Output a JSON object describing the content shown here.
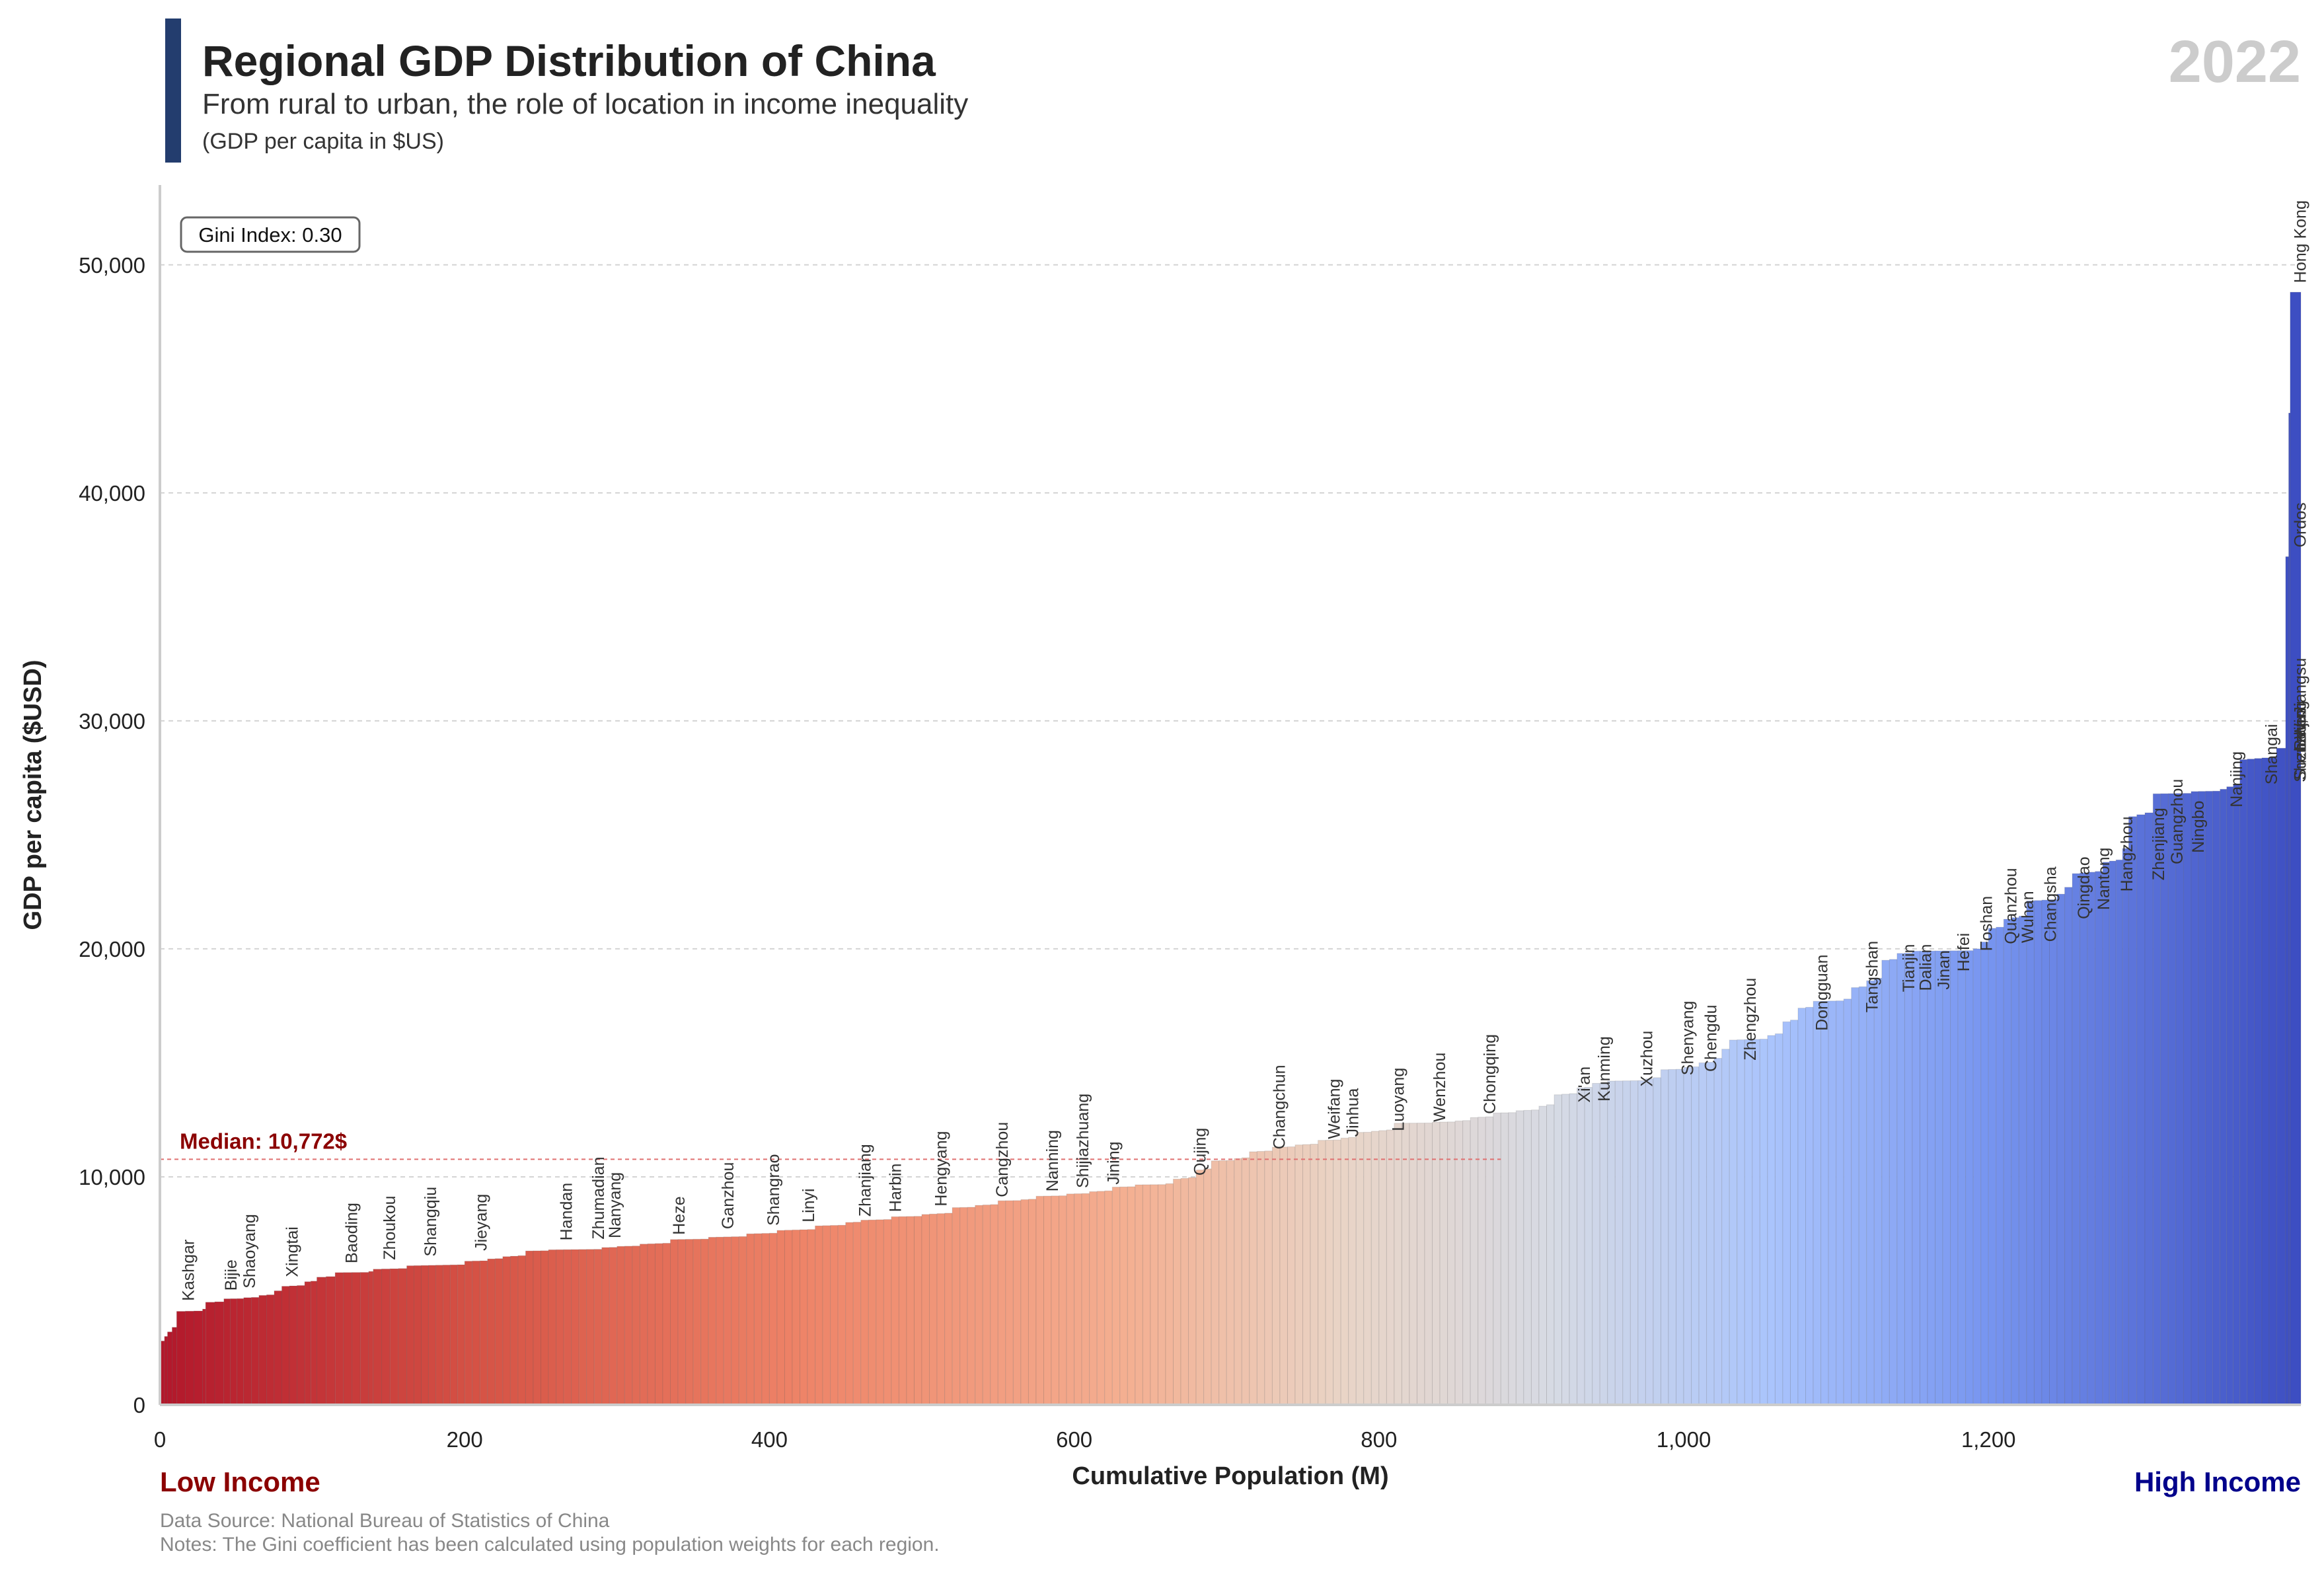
{
  "header": {
    "title": "Regional GDP Distribution of China",
    "subtitle": "From rural to urban, the role of location in income inequality",
    "unit_note": "(GDP per capita in $US)",
    "year": "2022",
    "accent_color": "#233d6e"
  },
  "footer": {
    "low_label": "Low Income",
    "high_label": "High Income",
    "source": "Data Source: National Bureau of Statistics of China",
    "notes": "Notes: The Gini coefficient has been calculated using population weights for each region.",
    "low_color": "#8b0000",
    "high_color": "#00008b"
  },
  "chart_data": {
    "type": "bar",
    "title": "Regional GDP Distribution of China",
    "xlabel": "Cumulative Population (M)",
    "ylabel": "GDP per capita ($USD)",
    "xlim": [
      0,
      1405
    ],
    "ylim": [
      0,
      53500
    ],
    "x_ticks": [
      0,
      200,
      400,
      600,
      800,
      1000,
      1200
    ],
    "x_tick_labels": [
      "0",
      "200",
      "400",
      "600",
      "800",
      "1,000",
      "1,200"
    ],
    "y_ticks": [
      0,
      10000,
      20000,
      30000,
      40000,
      50000
    ],
    "y_tick_labels": [
      "0",
      "10,000",
      "20,000",
      "30,000",
      "40,000",
      "50,000"
    ],
    "grid": "horizontal dashed",
    "gini_label": "Gini Index: 0.30",
    "median_value": 10772,
    "median_label": "Median: 10,772$",
    "median_color": "#8b0000",
    "colormap": "coolwarm (low = red, high = blue)",
    "profile": [
      [
        0,
        2800
      ],
      [
        3,
        3000
      ],
      [
        5,
        3200
      ],
      [
        8,
        3400
      ],
      [
        11,
        4100
      ],
      [
        28,
        4200
      ],
      [
        30,
        4500
      ],
      [
        42,
        4650
      ],
      [
        55,
        4700
      ],
      [
        65,
        4800
      ],
      [
        75,
        5000
      ],
      [
        80,
        5200
      ],
      [
        95,
        5400
      ],
      [
        103,
        5600
      ],
      [
        115,
        5800
      ],
      [
        137,
        5850
      ],
      [
        140,
        5950
      ],
      [
        162,
        6100
      ],
      [
        200,
        6300
      ],
      [
        215,
        6400
      ],
      [
        225,
        6500
      ],
      [
        240,
        6750
      ],
      [
        255,
        6800
      ],
      [
        290,
        6900
      ],
      [
        300,
        6950
      ],
      [
        315,
        7050
      ],
      [
        335,
        7250
      ],
      [
        360,
        7350
      ],
      [
        385,
        7500
      ],
      [
        405,
        7650
      ],
      [
        430,
        7850
      ],
      [
        450,
        8000
      ],
      [
        460,
        8100
      ],
      [
        480,
        8250
      ],
      [
        500,
        8350
      ],
      [
        520,
        8650
      ],
      [
        535,
        8750
      ],
      [
        550,
        8950
      ],
      [
        565,
        9000
      ],
      [
        575,
        9150
      ],
      [
        595,
        9250
      ],
      [
        610,
        9350
      ],
      [
        625,
        9550
      ],
      [
        640,
        9650
      ],
      [
        660,
        9700
      ],
      [
        665,
        9900
      ],
      [
        680,
        10300
      ],
      [
        690,
        10700
      ],
      [
        705,
        10800
      ],
      [
        715,
        11100
      ],
      [
        730,
        11300
      ],
      [
        745,
        11400
      ],
      [
        760,
        11600
      ],
      [
        775,
        11700
      ],
      [
        785,
        11950
      ],
      [
        795,
        12000
      ],
      [
        810,
        12350
      ],
      [
        835,
        12400
      ],
      [
        850,
        12450
      ],
      [
        860,
        12600
      ],
      [
        875,
        12800
      ],
      [
        890,
        12900
      ],
      [
        905,
        13100
      ],
      [
        915,
        13600
      ],
      [
        930,
        13900
      ],
      [
        940,
        14100
      ],
      [
        950,
        14200
      ],
      [
        975,
        14300
      ],
      [
        985,
        14700
      ],
      [
        1000,
        14800
      ],
      [
        1010,
        15000
      ],
      [
        1020,
        15200
      ],
      [
        1025,
        15600
      ],
      [
        1030,
        16000
      ],
      [
        1055,
        16200
      ],
      [
        1065,
        16800
      ],
      [
        1075,
        17400
      ],
      [
        1085,
        17700
      ],
      [
        1105,
        17800
      ],
      [
        1110,
        18300
      ],
      [
        1120,
        18600
      ],
      [
        1130,
        19500
      ],
      [
        1140,
        19800
      ],
      [
        1150,
        19900
      ],
      [
        1190,
        20000
      ],
      [
        1195,
        20300
      ],
      [
        1200,
        20900
      ],
      [
        1210,
        21300
      ],
      [
        1225,
        22100
      ],
      [
        1245,
        22400
      ],
      [
        1250,
        22700
      ],
      [
        1255,
        23300
      ],
      [
        1275,
        23800
      ],
      [
        1288,
        24400
      ],
      [
        1292,
        25800
      ],
      [
        1308,
        26800
      ],
      [
        1333,
        26900
      ],
      [
        1352,
        27000
      ],
      [
        1365,
        28300
      ],
      [
        1389,
        28800
      ],
      [
        1395,
        37200
      ],
      [
        1397,
        43500
      ],
      [
        1398,
        48800
      ],
      [
        1405,
        48800
      ]
    ],
    "labels": [
      {
        "name": "Kashgar",
        "x": 18,
        "y": 4150
      },
      {
        "name": "Bijie",
        "x": 46,
        "y": 4600
      },
      {
        "name": "Shaoyang",
        "x": 58,
        "y": 4700
      },
      {
        "name": "Xingtai",
        "x": 86,
        "y": 5200
      },
      {
        "name": "Baoding",
        "x": 125,
        "y": 5800
      },
      {
        "name": "Zhoukou",
        "x": 150,
        "y": 5950
      },
      {
        "name": "Shangqiu",
        "x": 177,
        "y": 6100
      },
      {
        "name": "Jieyang",
        "x": 210,
        "y": 6350
      },
      {
        "name": "Handan",
        "x": 266,
        "y": 6800
      },
      {
        "name": "Zhumadian",
        "x": 287,
        "y": 6850
      },
      {
        "name": "Nanyang",
        "x": 298,
        "y": 6900
      },
      {
        "name": "Heze",
        "x": 340,
        "y": 7050
      },
      {
        "name": "Ganzhou",
        "x": 372,
        "y": 7300
      },
      {
        "name": "Shangrao",
        "x": 402,
        "y": 7450
      },
      {
        "name": "Linyi",
        "x": 425,
        "y": 7600
      },
      {
        "name": "Zhanjiang",
        "x": 462,
        "y": 7850
      },
      {
        "name": "Harbin",
        "x": 482,
        "y": 8050
      },
      {
        "name": "Hengyang",
        "x": 512,
        "y": 8300
      },
      {
        "name": "Cangzhou",
        "x": 552,
        "y": 8700
      },
      {
        "name": "Nanning",
        "x": 585,
        "y": 8950
      },
      {
        "name": "Shijiazhuang",
        "x": 605,
        "y": 9100
      },
      {
        "name": "Jining",
        "x": 625,
        "y": 9250
      },
      {
        "name": "Qujing",
        "x": 682,
        "y": 9650
      },
      {
        "name": "Changchun",
        "x": 734,
        "y": 10800
      },
      {
        "name": "Weifang",
        "x": 770,
        "y": 11250
      },
      {
        "name": "Jinhua",
        "x": 782,
        "y": 11350
      },
      {
        "name": "Luoyang",
        "x": 812,
        "y": 11600
      },
      {
        "name": "Wenzhou",
        "x": 839,
        "y": 12000
      },
      {
        "name": "Chongqing",
        "x": 872,
        "y": 12350
      },
      {
        "name": "Xi'an",
        "x": 934,
        "y": 12850
      },
      {
        "name": "Kunming",
        "x": 947,
        "y": 12900
      },
      {
        "name": "Xuzhou",
        "x": 975,
        "y": 13550
      },
      {
        "name": "Shenyang",
        "x": 1002,
        "y": 14050
      },
      {
        "name": "Chengdu",
        "x": 1017,
        "y": 14200
      },
      {
        "name": "Zhengzhou",
        "x": 1043,
        "y": 14700
      },
      {
        "name": "Dongguan",
        "x": 1090,
        "y": 16000
      },
      {
        "name": "Tangshan",
        "x": 1123,
        "y": 16800
      },
      {
        "name": "Tianjin",
        "x": 1147,
        "y": 17700
      },
      {
        "name": "Dalian",
        "x": 1158,
        "y": 17750
      },
      {
        "name": "Jinan",
        "x": 1170,
        "y": 17800
      },
      {
        "name": "Hefei",
        "x": 1183,
        "y": 18600
      },
      {
        "name": "Foshan",
        "x": 1198,
        "y": 19500
      },
      {
        "name": "Quanzhou",
        "x": 1214,
        "y": 19800
      },
      {
        "name": "Wuhan",
        "x": 1225,
        "y": 19850
      },
      {
        "name": "Changsha",
        "x": 1240,
        "y": 19900
      },
      {
        "name": "Qingdao",
        "x": 1262,
        "y": 20900
      },
      {
        "name": "Nantong",
        "x": 1275,
        "y": 21300
      },
      {
        "name": "Hangzhou",
        "x": 1290,
        "y": 22100
      },
      {
        "name": "Zhenjiang",
        "x": 1311,
        "y": 22600
      },
      {
        "name": "Guangzhou",
        "x": 1323,
        "y": 23300
      },
      {
        "name": "Ningbo",
        "x": 1337,
        "y": 23800
      },
      {
        "name": "Nanjing",
        "x": 1362,
        "y": 25800
      },
      {
        "name": "Shangai",
        "x": 1385,
        "y": 26800
      },
      {
        "name": "Shenzhen",
        "x": 1410,
        "y": 26900
      },
      {
        "name": "Suzhou, Jiangsu",
        "x": 1425,
        "y": 27000
      },
      {
        "name": "Beijing",
        "x": 1443,
        "y": 28300
      },
      {
        "name": "Wuxi",
        "x": 1453,
        "y": 28800
      },
      {
        "name": "Ordos",
        "x": 1462,
        "y": 37200
      },
      {
        "name": "Hong Kong",
        "x": 1475,
        "y": 48800
      }
    ]
  }
}
